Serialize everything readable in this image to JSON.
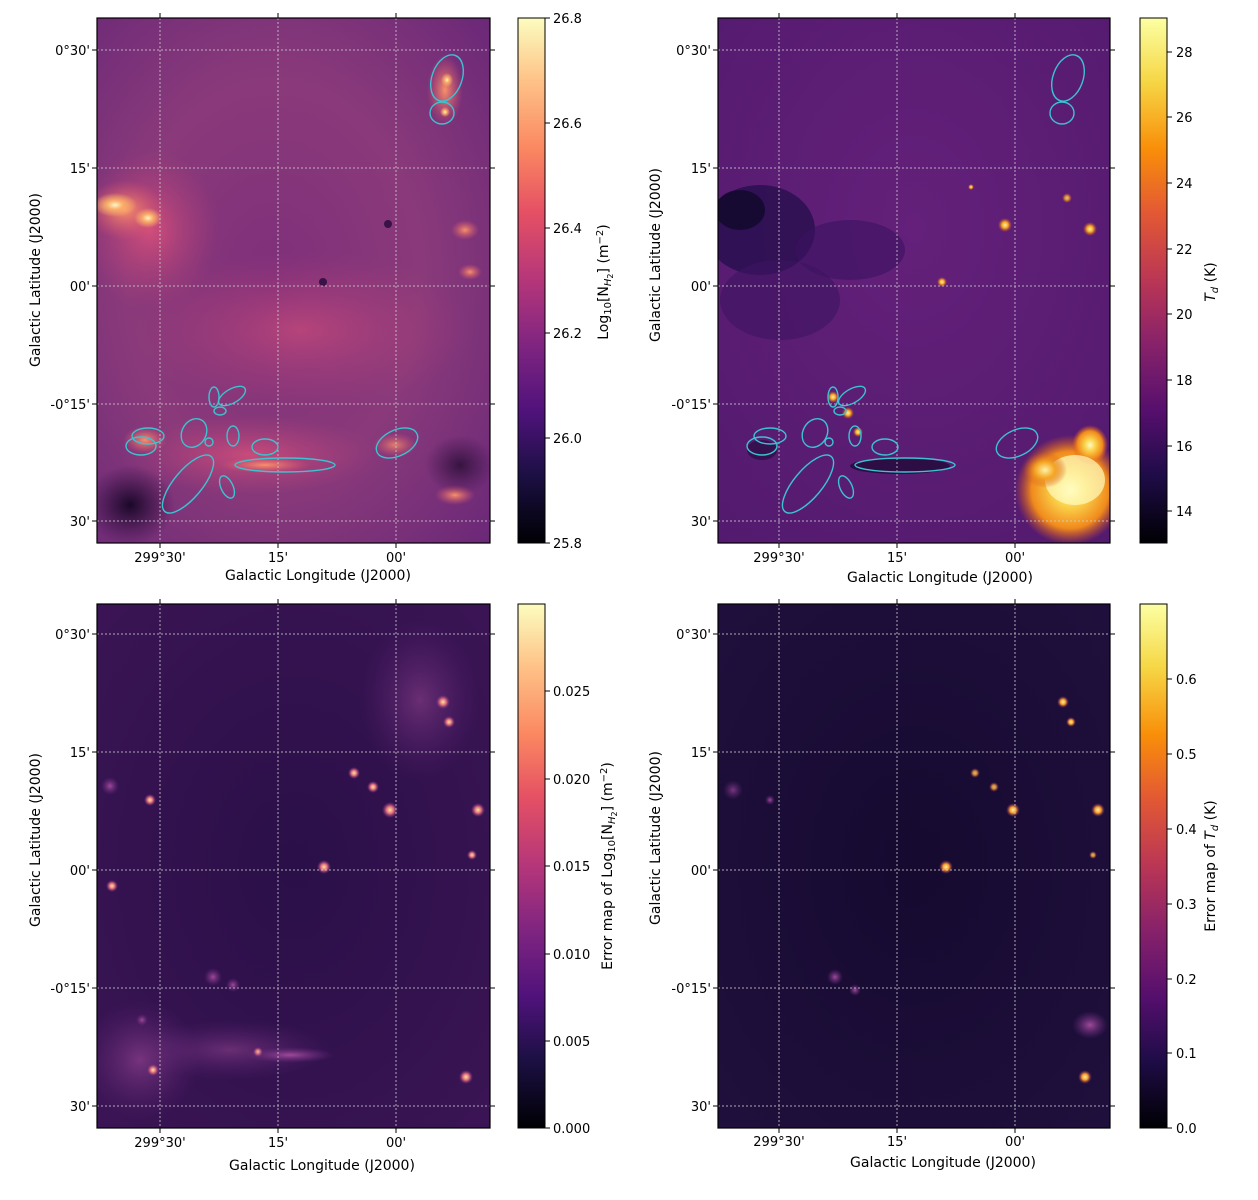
{
  "chart_data": [
    {
      "type": "heatmap",
      "panel": "top-left",
      "title": "",
      "xlabel": "Galactic Longitude (J2000)",
      "ylabel": "Galactic Latitude (J2000)",
      "x_ticks": [
        "299°30'",
        "15'",
        "00'"
      ],
      "y_ticks": [
        "0°30'",
        "15'",
        "00'",
        "-0°15'",
        "30'"
      ],
      "colormap": "magma",
      "colorbar": {
        "label": "Log$_{10}$[$N_{H_2}$] (m$^{-2}$)",
        "label_text": "Log10[N_H2] (m⁻²)",
        "range": [
          25.8,
          26.8
        ],
        "ticks": [
          "25.8",
          "26.0",
          "26.2",
          "26.4",
          "26.6",
          "26.8"
        ]
      },
      "image_description": "Molecular hydrogen column density map; bright dense clumps along the left edge and lower-left filament; cyan ellipses mark identified clumps.",
      "has_ellipses": true
    },
    {
      "type": "heatmap",
      "panel": "top-right",
      "title": "",
      "xlabel": "Galactic Longitude (J2000)",
      "ylabel": "Galactic Latitude (J2000)",
      "x_ticks": [
        "299°30'",
        "15'",
        "00'"
      ],
      "y_ticks": [
        "0°30'",
        "15'",
        "00'",
        "-0°15'",
        "30'"
      ],
      "colormap": "inferno",
      "colorbar": {
        "label": "T_d (K)",
        "range": [
          13,
          29
        ],
        "ticks": [
          "14",
          "16",
          "18",
          "20",
          "22",
          "24",
          "26",
          "28"
        ]
      },
      "image_description": "Dust temperature map; hot region in lower-right corner and compact warm point sources.",
      "has_ellipses": true
    },
    {
      "type": "heatmap",
      "panel": "bottom-left",
      "title": "",
      "xlabel": "Galactic Longitude (J2000)",
      "ylabel": "Galactic Latitude (J2000)",
      "x_ticks": [
        "299°30'",
        "15'",
        "00'"
      ],
      "y_ticks": [
        "0°30'",
        "15'",
        "00'",
        "-0°15'",
        "30'"
      ],
      "colormap": "magma",
      "colorbar": {
        "label": "Error map of Log10[N_H2] (m⁻²)",
        "range": [
          0.0,
          0.03
        ],
        "ticks": [
          "0.000",
          "0.005",
          "0.010",
          "0.015",
          "0.020",
          "0.025"
        ]
      },
      "has_ellipses": false
    },
    {
      "type": "heatmap",
      "panel": "bottom-right",
      "title": "",
      "xlabel": "Galactic Longitude (J2000)",
      "ylabel": "Galactic Latitude (J2000)",
      "x_ticks": [
        "299°30'",
        "15'",
        "00'"
      ],
      "y_ticks": [
        "0°30'",
        "15'",
        "00'",
        "-0°15'",
        "30'"
      ],
      "colormap": "inferno",
      "colorbar": {
        "label": "Error map of T_d (K)",
        "range": [
          0.0,
          0.7
        ],
        "ticks": [
          "0.0",
          "0.1",
          "0.2",
          "0.3",
          "0.4",
          "0.5",
          "0.6"
        ]
      },
      "has_ellipses": false
    }
  ],
  "text": {
    "xlabel": "Galactic Longitude (J2000)",
    "ylabel": "Galactic Latitude (J2000)",
    "cb1_prefix": "Log",
    "cb1_sub": "10",
    "cb1_mid": "[N",
    "cb1_subH": "H",
    "cb1_sub2": "2",
    "cb1_end": "] (m",
    "cb1_sup": "−2",
    "cb1_close": ")",
    "cb2_T": "T",
    "cb2_sub": "d",
    "cb2_end": " (K)",
    "cb3_prefix": "Error map of Log",
    "cb4_prefix": "Error map of "
  },
  "colors": {
    "ellipse": "#3cc3d0",
    "grid": "#cfcfcf",
    "background_tl": "#8a3a7a",
    "background_tr": "#5e1e78",
    "background_bl": "#3d1556",
    "background_br": "#1e0c3a"
  }
}
